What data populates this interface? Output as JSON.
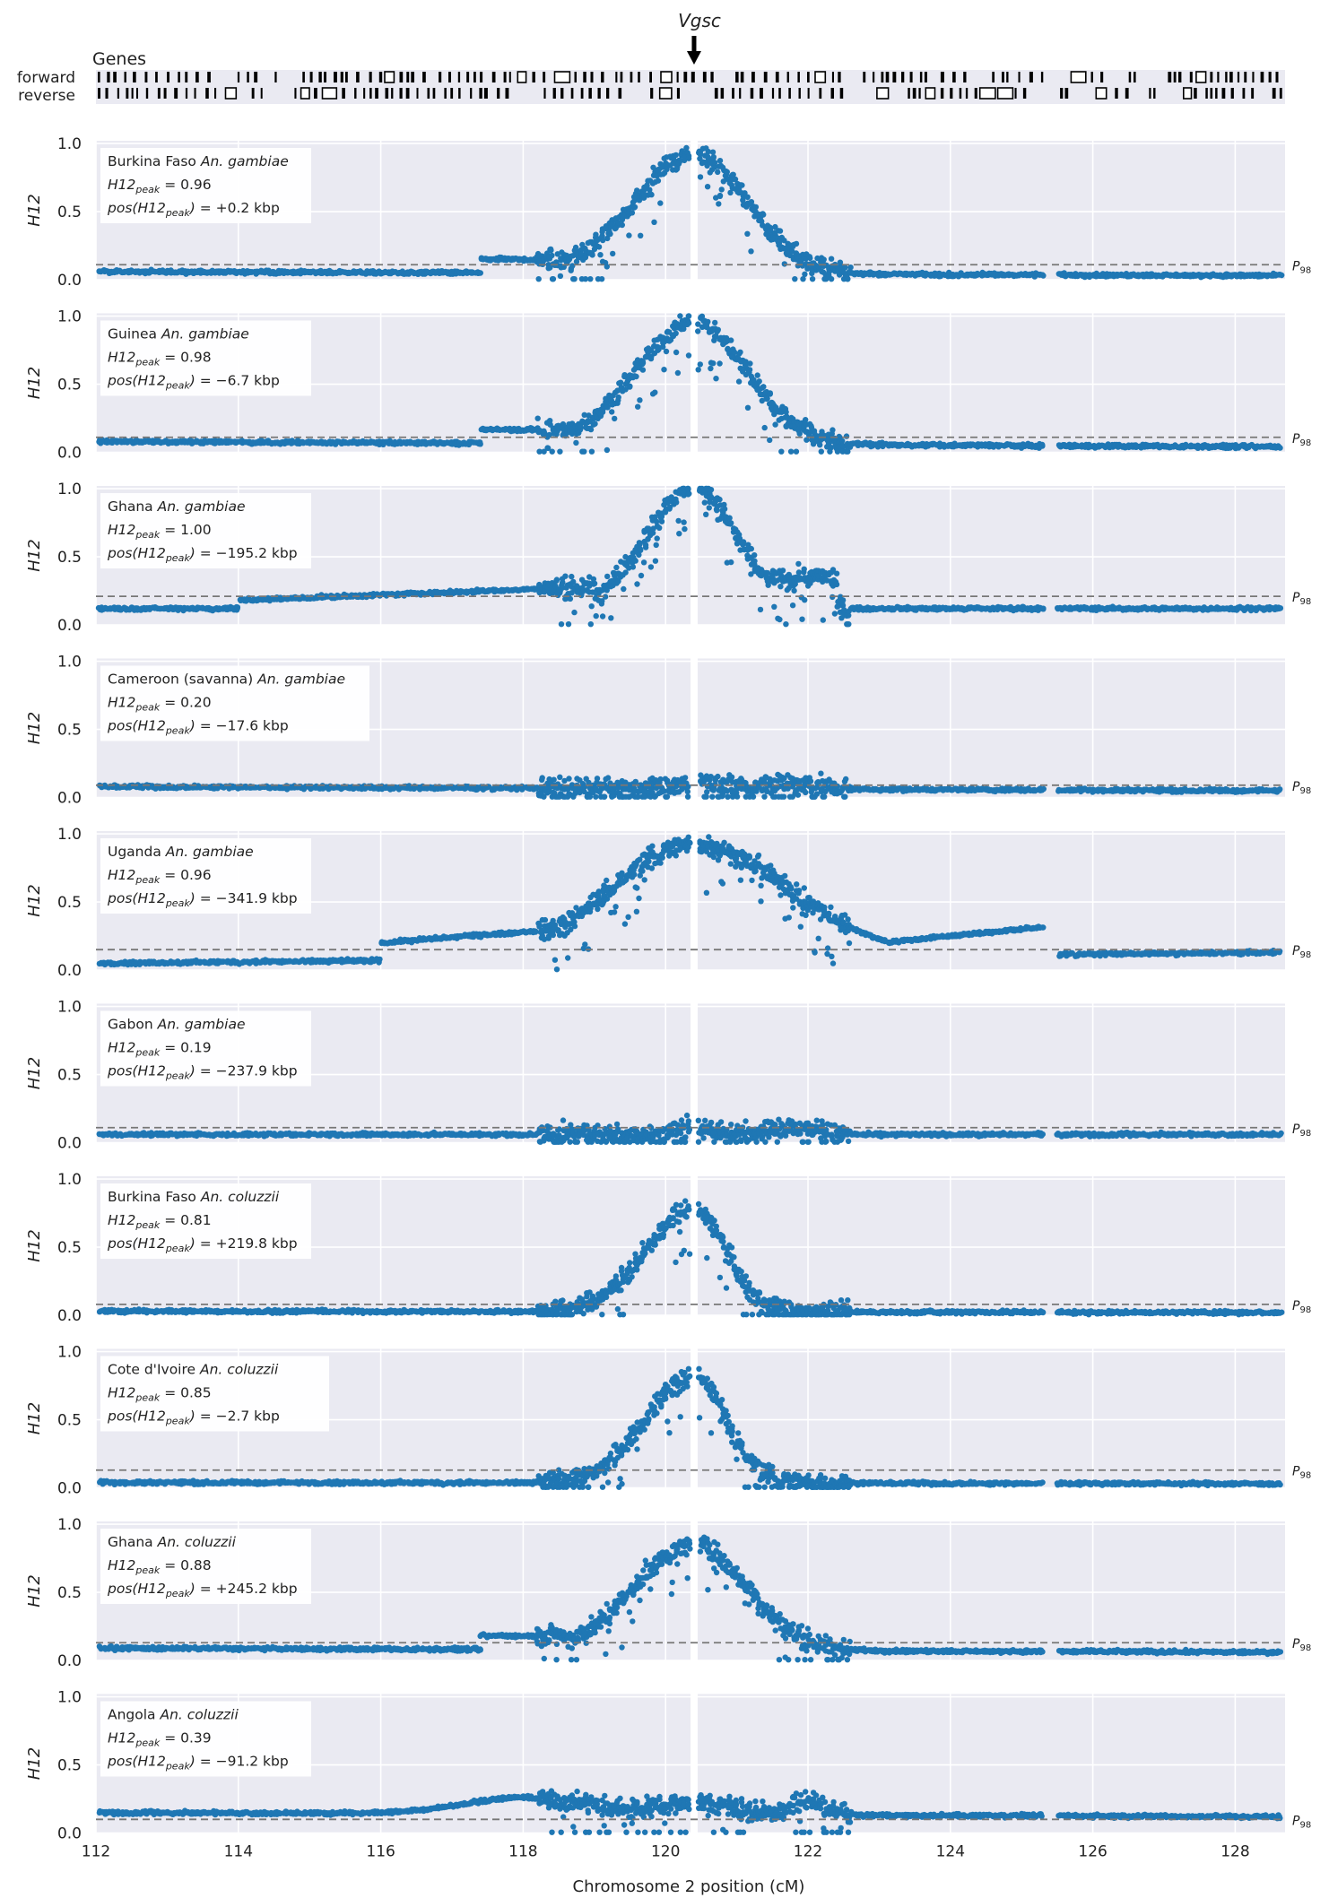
{
  "figure": {
    "genes_title": "Genes",
    "gene_label": "Vgsc",
    "strand_forward": "forward",
    "strand_reverse": "reverse",
    "ylabel": "H12",
    "xlabel": "Chromosome 2 position (cM)",
    "threshold_label": "P98",
    "colors": {
      "points": "#1f77b4",
      "panel_bg": "#eaeaf2",
      "grid": "#ffffff",
      "threshold": "#777777",
      "gene": "#000000"
    }
  },
  "chart_data": {
    "type": "scatter",
    "xlabel": "Chromosome 2 position (cM)",
    "ylabel": "H12",
    "xlim": [
      112,
      128.7
    ],
    "ylim": [
      0,
      1.02
    ],
    "xticks": [
      112,
      114,
      116,
      118,
      120,
      122,
      124,
      126,
      128
    ],
    "yticks": [
      0.0,
      0.5,
      1.0
    ],
    "gene_marker_x": 120.4,
    "grid": true,
    "panels": [
      {
        "population": "Burkina Faso",
        "species": "An. gambiae",
        "h12_peak": "0.96",
        "peak_pos": "+0.2",
        "p98": 0.11,
        "base_left": 0.06,
        "base_right": 0.03,
        "peak": 0.93,
        "shape": "strong"
      },
      {
        "population": "Guinea",
        "species": "An. gambiae",
        "h12_peak": "0.98",
        "peak_pos": "−6.7",
        "p98": 0.11,
        "base_left": 0.08,
        "base_right": 0.04,
        "peak": 0.95,
        "shape": "strong"
      },
      {
        "population": "Ghana",
        "species": "An. gambiae",
        "h12_peak": "1.00",
        "peak_pos": "−195.2",
        "p98": 0.21,
        "base_left": 0.12,
        "base_right": 0.12,
        "peak": 1.0,
        "shape": "ghana"
      },
      {
        "population": "Cameroon (savanna)",
        "species": "An. gambiae",
        "h12_peak": "0.20",
        "peak_pos": "−17.6",
        "p98": 0.09,
        "base_left": 0.08,
        "base_right": 0.05,
        "peak": 0.16,
        "shape": "flat"
      },
      {
        "population": "Uganda",
        "species": "An. gambiae",
        "h12_peak": "0.96",
        "peak_pos": "−341.9",
        "p98": 0.15,
        "base_left": 0.05,
        "base_right": 0.13,
        "peak": 0.92,
        "shape": "broad"
      },
      {
        "population": "Gabon",
        "species": "An. gambiae",
        "h12_peak": "0.19",
        "peak_pos": "−237.9",
        "p98": 0.11,
        "base_left": 0.06,
        "base_right": 0.06,
        "peak": 0.16,
        "shape": "flat"
      },
      {
        "population": "Burkina Faso",
        "species": "An. coluzzii",
        "h12_peak": "0.81",
        "peak_pos": "+219.8",
        "p98": 0.08,
        "base_left": 0.03,
        "base_right": 0.02,
        "peak": 0.78,
        "shape": "narrow"
      },
      {
        "population": "Cote d'Ivoire",
        "species": "An. coluzzii",
        "h12_peak": "0.85",
        "peak_pos": "−2.7",
        "p98": 0.13,
        "base_left": 0.04,
        "base_right": 0.03,
        "peak": 0.82,
        "shape": "narrow"
      },
      {
        "population": "Ghana",
        "species": "An. coluzzii",
        "h12_peak": "0.88",
        "peak_pos": "+245.2",
        "p98": 0.13,
        "base_left": 0.09,
        "base_right": 0.06,
        "peak": 0.85,
        "shape": "strong"
      },
      {
        "population": "Angola",
        "species": "An. coluzzii",
        "h12_peak": "0.39",
        "peak_pos": "−91.2",
        "p98": 0.1,
        "base_left": 0.1,
        "base_right": 0.07,
        "peak": 0.35,
        "shape": "angola"
      }
    ]
  }
}
